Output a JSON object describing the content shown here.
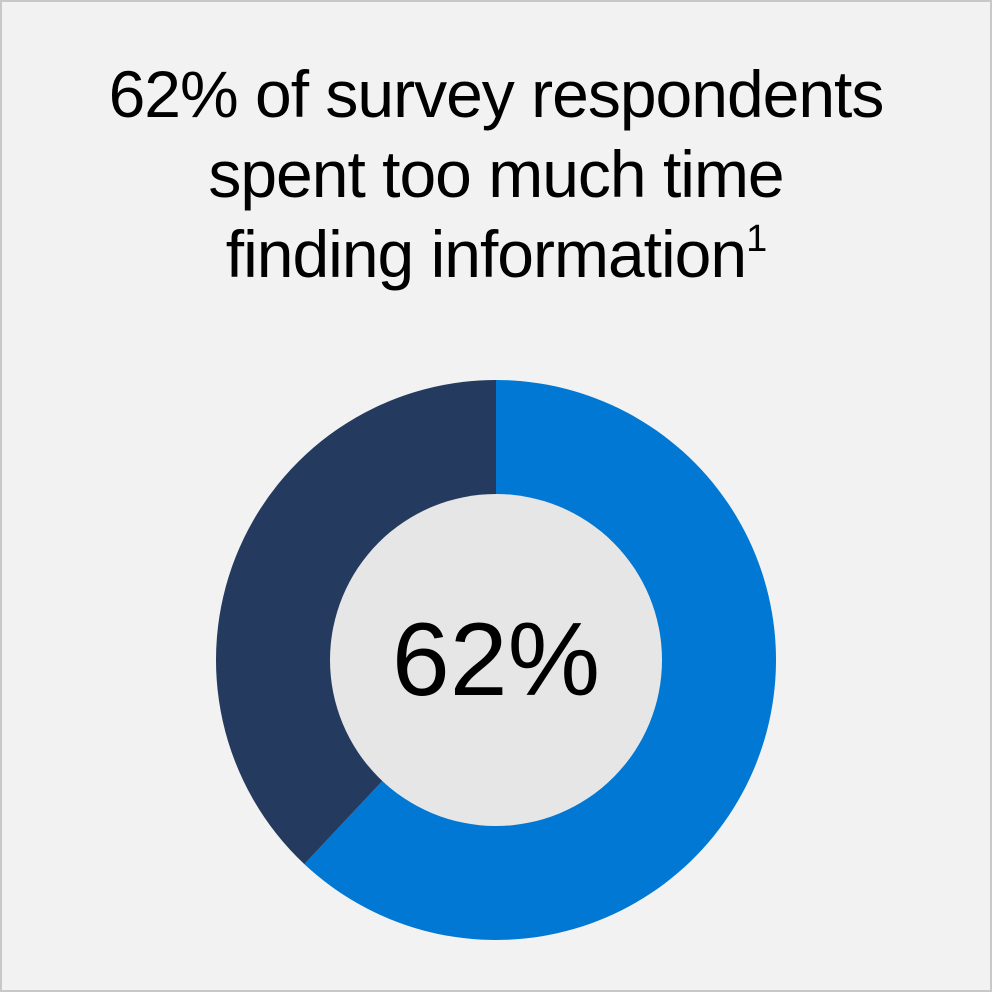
{
  "title": {
    "line1": "62% of survey respondents",
    "line2": "spent too much time",
    "line3": "finding information",
    "footnote_mark": "1"
  },
  "center_label": "62%",
  "colors": {
    "background": "#f2f2f2",
    "highlight_segment": "#0078d4",
    "remainder_segment": "#243a5e",
    "donut_hole": "#e6e6e6",
    "text": "#000000"
  },
  "chart_data": {
    "type": "pie",
    "variant": "donut",
    "unit": "%",
    "slices": [
      {
        "value": 62,
        "color": "#0078d4"
      },
      {
        "value": 38,
        "color": "#243a5e"
      }
    ],
    "start": "top",
    "direction": "clockwise"
  }
}
